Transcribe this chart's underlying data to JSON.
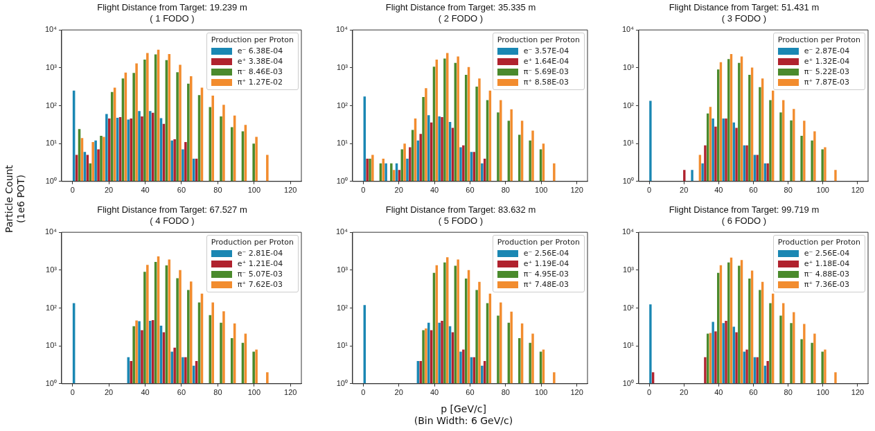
{
  "chart_data": [
    {
      "type": "histogram",
      "title": "Flight Distance from Target: 19.239 m",
      "subtitle": "( 1 FODO )",
      "ylabel": "Particle Count\n(1e6 POT)",
      "bins": [
        0,
        6,
        12,
        18,
        24,
        30,
        36,
        42,
        48,
        54,
        60,
        66,
        72,
        78,
        84,
        90,
        96,
        102,
        108
      ],
      "xlim": [
        -6,
        126
      ],
      "xticks": [
        0,
        20,
        40,
        60,
        80,
        100,
        120
      ],
      "ylim": [
        1,
        10000
      ],
      "yticks": [
        {
          "value": 1,
          "label": "10⁰"
        },
        {
          "value": 10,
          "label": "10¹"
        },
        {
          "value": 100,
          "label": "10²"
        },
        {
          "value": 1000,
          "label": "10³"
        },
        {
          "value": 10000,
          "label": "10⁴"
        }
      ],
      "log": "y",
      "grid": false,
      "legend": "top right",
      "legend_title": "Production per Proton",
      "series": [
        {
          "name": "e⁻ 6.38E-04",
          "color": "#1a87b3",
          "values": [
            250,
            6,
            12,
            60,
            48,
            43,
            72,
            72,
            47,
            12,
            7,
            4,
            null,
            null,
            null,
            null,
            null,
            null
          ]
        },
        {
          "name": "e⁺ 3.38E-04",
          "color": "#b0222e",
          "values": [
            5,
            5,
            7,
            46,
            50,
            46,
            52,
            65,
            33,
            13,
            11,
            4,
            null,
            null,
            null,
            null,
            null,
            null
          ]
        },
        {
          "name": "π⁻ 8.46E-03",
          "color": "#4a8a2c",
          "values": [
            24,
            3,
            16,
            230,
            520,
            730,
            1650,
            2250,
            1600,
            760,
            380,
            190,
            92,
            52,
            27,
            21,
            10,
            null
          ]
        },
        {
          "name": "π⁺ 1.27E-02",
          "color": "#f28c2e",
          "values": [
            14,
            11,
            15,
            300,
            750,
            1300,
            2450,
            3000,
            2300,
            1200,
            600,
            300,
            185,
            105,
            55,
            31,
            15,
            5
          ]
        }
      ]
    },
    {
      "type": "histogram",
      "title": "Flight Distance from Target: 35.335 m",
      "subtitle": "( 2 FODO )",
      "bins": [
        0,
        6,
        12,
        18,
        24,
        30,
        36,
        42,
        48,
        54,
        60,
        66,
        72,
        78,
        84,
        90,
        96,
        102,
        108
      ],
      "xlim": [
        -6,
        126
      ],
      "xticks": [
        0,
        20,
        40,
        60,
        80,
        100,
        120
      ],
      "ylim": [
        1,
        10000
      ],
      "yticks": [
        {
          "value": 1,
          "label": "10⁰"
        },
        {
          "value": 10,
          "label": "10¹"
        },
        {
          "value": 100,
          "label": "10²"
        },
        {
          "value": 1000,
          "label": "10³"
        },
        {
          "value": 10000,
          "label": "10⁴"
        }
      ],
      "log": "y",
      "grid": false,
      "legend": "top right",
      "legend_title": "Production per Proton",
      "series": [
        {
          "name": "e⁻ 3.57E-04",
          "color": "#1a87b3",
          "values": [
            175,
            null,
            3,
            3,
            4,
            12,
            56,
            52,
            37,
            8,
            6,
            3,
            null,
            null,
            null,
            null,
            null,
            null
          ]
        },
        {
          "name": "e⁺ 1.64E-04",
          "color": "#b0222e",
          "values": [
            4,
            null,
            null,
            2,
            8,
            18,
            36,
            50,
            26,
            9,
            6,
            4,
            null,
            null,
            null,
            null,
            null,
            null
          ]
        },
        {
          "name": "π⁻ 5.69E-03",
          "color": "#4a8a2c",
          "values": [
            4,
            3,
            3,
            7,
            23,
            170,
            1070,
            1750,
            1350,
            650,
            320,
            140,
            66,
            40,
            17,
            12,
            7,
            null
          ]
        },
        {
          "name": "π⁺ 8.58E-03",
          "color": "#f28c2e",
          "values": [
            5,
            4,
            2,
            10,
            46,
            290,
            1650,
            2450,
            2000,
            1050,
            520,
            250,
            140,
            80,
            40,
            22,
            10,
            3
          ]
        }
      ]
    },
    {
      "type": "histogram",
      "title": "Flight Distance from Target: 51.431 m",
      "subtitle": "( 3 FODO )",
      "bins": [
        0,
        6,
        12,
        18,
        24,
        30,
        36,
        42,
        48,
        54,
        60,
        66,
        72,
        78,
        84,
        90,
        96,
        102,
        108
      ],
      "xlim": [
        -6,
        126
      ],
      "xticks": [
        0,
        20,
        40,
        60,
        80,
        100,
        120
      ],
      "ylim": [
        1,
        10000
      ],
      "yticks": [
        {
          "value": 1,
          "label": "10⁰"
        },
        {
          "value": 10,
          "label": "10¹"
        },
        {
          "value": 100,
          "label": "10²"
        },
        {
          "value": 1000,
          "label": "10³"
        },
        {
          "value": 10000,
          "label": "10⁴"
        }
      ],
      "log": "y",
      "grid": false,
      "legend": "top right",
      "legend_title": "Production per Proton",
      "series": [
        {
          "name": "e⁻ 2.87E-04",
          "color": "#1a87b3",
          "values": [
            135,
            null,
            null,
            null,
            2,
            3,
            46,
            46,
            36,
            9,
            5,
            3,
            null,
            null,
            null,
            null,
            null,
            null
          ]
        },
        {
          "name": "e⁺ 1.32E-04",
          "color": "#b0222e",
          "values": [
            null,
            null,
            null,
            2,
            null,
            9,
            28,
            46,
            26,
            9,
            5,
            3,
            null,
            null,
            null,
            null,
            null,
            null
          ]
        },
        {
          "name": "π⁻ 5.22E-03",
          "color": "#4a8a2c",
          "values": [
            null,
            null,
            null,
            null,
            null,
            62,
            900,
            1700,
            1350,
            650,
            310,
            140,
            66,
            41,
            16,
            12,
            7,
            null
          ]
        },
        {
          "name": "π⁺ 7.87E-03",
          "color": "#f28c2e",
          "values": [
            null,
            null,
            null,
            null,
            5,
            93,
            1400,
            2300,
            2000,
            1020,
            520,
            250,
            140,
            82,
            40,
            21,
            8,
            2
          ]
        }
      ]
    },
    {
      "type": "histogram",
      "title": "Flight Distance from Target: 67.527 m",
      "subtitle": "( 4 FODO )",
      "bins": [
        0,
        6,
        12,
        18,
        24,
        30,
        36,
        42,
        48,
        54,
        60,
        66,
        72,
        78,
        84,
        90,
        96,
        102,
        108
      ],
      "xlim": [
        -6,
        126
      ],
      "xticks": [
        0,
        20,
        40,
        60,
        80,
        100,
        120
      ],
      "ylim": [
        1,
        10000
      ],
      "yticks": [
        {
          "value": 1,
          "label": "10⁰"
        },
        {
          "value": 10,
          "label": "10¹"
        },
        {
          "value": 100,
          "label": "10²"
        },
        {
          "value": 1000,
          "label": "10³"
        },
        {
          "value": 10000,
          "label": "10⁴"
        }
      ],
      "log": "y",
      "grid": false,
      "legend": "top right",
      "legend_title": "Production per Proton",
      "series": [
        {
          "name": "e⁻ 2.81E-04",
          "color": "#1a87b3",
          "values": [
            135,
            null,
            null,
            null,
            null,
            5,
            45,
            46,
            34,
            7,
            5,
            3,
            null,
            null,
            null,
            null,
            null,
            null
          ]
        },
        {
          "name": "e⁺ 1.21E-04",
          "color": "#b0222e",
          "values": [
            null,
            null,
            null,
            null,
            null,
            4,
            26,
            48,
            23,
            9,
            5,
            4,
            null,
            null,
            null,
            null,
            null,
            null
          ]
        },
        {
          "name": "π⁻ 5.07E-03",
          "color": "#4a8a2c",
          "values": [
            null,
            null,
            null,
            null,
            null,
            33,
            900,
            1650,
            1330,
            610,
            300,
            140,
            65,
            41,
            16,
            12,
            7,
            null
          ]
        },
        {
          "name": "π⁺ 7.62E-03",
          "color": "#f28c2e",
          "values": [
            null,
            null,
            null,
            null,
            null,
            47,
            1380,
            2300,
            1900,
            1000,
            500,
            240,
            140,
            82,
            39,
            21,
            8,
            2
          ]
        }
      ]
    },
    {
      "type": "histogram",
      "title": "Flight Distance from Target: 83.632 m",
      "subtitle": "( 5 FODO )",
      "xlabel": "p [GeV/c]\n(Bin Width: 6 GeV/c)",
      "bins": [
        0,
        6,
        12,
        18,
        24,
        30,
        36,
        42,
        48,
        54,
        60,
        66,
        72,
        78,
        84,
        90,
        96,
        102,
        108
      ],
      "xlim": [
        -6,
        126
      ],
      "xticks": [
        0,
        20,
        40,
        60,
        80,
        100,
        120
      ],
      "ylim": [
        1,
        10000
      ],
      "yticks": [
        {
          "value": 1,
          "label": "10⁰"
        },
        {
          "value": 10,
          "label": "10¹"
        },
        {
          "value": 100,
          "label": "10²"
        },
        {
          "value": 1000,
          "label": "10³"
        },
        {
          "value": 10000,
          "label": "10⁴"
        }
      ],
      "log": "y",
      "grid": false,
      "legend": "top right",
      "legend_title": "Production per Proton",
      "series": [
        {
          "name": "e⁻ 2.56E-04",
          "color": "#1a87b3",
          "values": [
            120,
            null,
            null,
            null,
            null,
            4,
            41,
            41,
            33,
            7,
            5,
            3,
            null,
            null,
            null,
            null,
            null,
            null
          ]
        },
        {
          "name": "e⁺ 1.19E-04",
          "color": "#b0222e",
          "values": [
            null,
            null,
            null,
            null,
            null,
            4,
            26,
            46,
            23,
            8,
            5,
            4,
            null,
            null,
            null,
            null,
            null,
            null
          ]
        },
        {
          "name": "π⁻ 4.95E-03",
          "color": "#4a8a2c",
          "values": [
            null,
            null,
            null,
            null,
            null,
            26,
            850,
            1600,
            1300,
            600,
            300,
            135,
            63,
            41,
            16,
            12,
            7,
            null
          ]
        },
        {
          "name": "π⁺ 7.48E-03",
          "color": "#f28c2e",
          "values": [
            null,
            null,
            null,
            null,
            null,
            29,
            1350,
            2200,
            1900,
            1000,
            490,
            240,
            140,
            80,
            39,
            21,
            8,
            2
          ]
        }
      ]
    },
    {
      "type": "histogram",
      "title": "Flight Distance from Target: 99.719 m",
      "subtitle": "( 6 FODO )",
      "bins": [
        0,
        6,
        12,
        18,
        24,
        30,
        36,
        42,
        48,
        54,
        60,
        66,
        72,
        78,
        84,
        90,
        96,
        102,
        108
      ],
      "xlim": [
        -6,
        126
      ],
      "xticks": [
        0,
        20,
        40,
        60,
        80,
        100,
        120
      ],
      "ylim": [
        1,
        10000
      ],
      "yticks": [
        {
          "value": 1,
          "label": "10⁰"
        },
        {
          "value": 10,
          "label": "10¹"
        },
        {
          "value": 100,
          "label": "10²"
        },
        {
          "value": 1000,
          "label": "10³"
        },
        {
          "value": 10000,
          "label": "10⁴"
        }
      ],
      "log": "y",
      "grid": false,
      "legend": "top right",
      "legend_title": "Production per Proton",
      "series": [
        {
          "name": "e⁻ 2.56E-04",
          "color": "#1a87b3",
          "values": [
            125,
            null,
            null,
            null,
            null,
            null,
            43,
            40,
            32,
            7,
            5,
            3,
            null,
            null,
            null,
            null,
            null,
            null
          ]
        },
        {
          "name": "e⁺ 1.18E-04",
          "color": "#b0222e",
          "values": [
            2,
            null,
            null,
            null,
            null,
            5,
            24,
            46,
            23,
            8,
            5,
            4,
            null,
            null,
            null,
            null,
            null,
            null
          ]
        },
        {
          "name": "π⁻ 4.88E-03",
          "color": "#4a8a2c",
          "values": [
            null,
            null,
            null,
            null,
            null,
            21,
            850,
            1600,
            1300,
            600,
            300,
            135,
            63,
            40,
            15,
            12,
            7,
            null
          ]
        },
        {
          "name": "π⁺ 7.36E-03",
          "color": "#f28c2e",
          "values": [
            null,
            null,
            null,
            null,
            null,
            22,
            1350,
            2150,
            1850,
            970,
            490,
            240,
            135,
            78,
            38,
            21,
            8,
            2
          ]
        }
      ]
    }
  ]
}
